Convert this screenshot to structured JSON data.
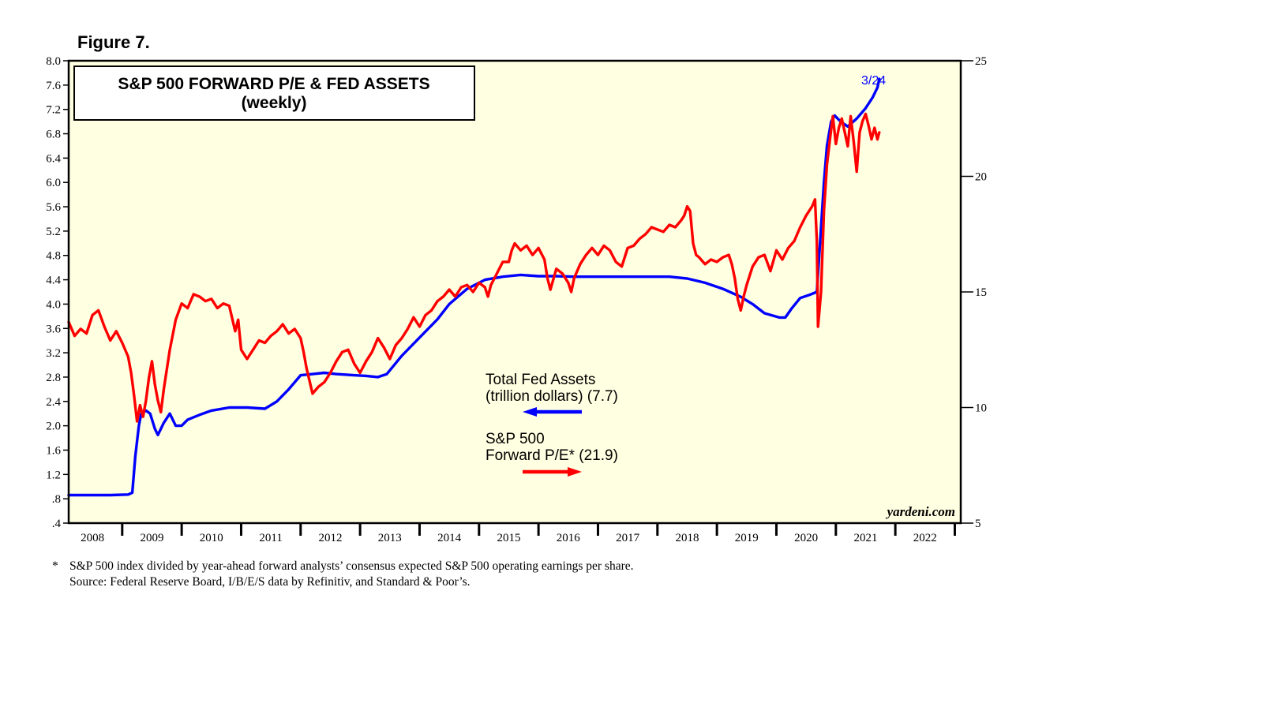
{
  "figure_label": "Figure 7.",
  "footnote_marker": "*",
  "footnote_text": "S&P 500 index divided by year-ahead forward analysts’ consensus expected S&P 500 operating earnings per share.",
  "source_text": "Source: Federal Reserve Board, I/B/E/S data by Refinitiv, and Standard & Poor’s.",
  "colors": {
    "background": "#FFFFE1",
    "fed_assets": "#0000FF",
    "pe": "#FF0000",
    "frame": "#000000"
  },
  "chart_data": {
    "type": "line",
    "title": "S&P 500 FORWARD P/E & FED ASSETS",
    "subtitle": "(weekly)",
    "watermark": "yardeni.com",
    "last_date_label": "3/24",
    "x_range": [
      2007.6,
      2022.6
    ],
    "x_ticks": [
      "2008",
      "2009",
      "2010",
      "2011",
      "2012",
      "2013",
      "2014",
      "2015",
      "2016",
      "2017",
      "2018",
      "2019",
      "2020",
      "2021",
      "2022"
    ],
    "y_left": {
      "range": [
        0.4,
        8.0
      ],
      "ticks": [
        "8.0",
        "7.6",
        "7.2",
        "6.8",
        "6.4",
        "6.0",
        "5.6",
        "5.2",
        "4.8",
        "4.4",
        "4.0",
        "3.6",
        "3.2",
        "2.8",
        "2.4",
        "2.0",
        "1.6",
        "1.2",
        ".8",
        ".4"
      ]
    },
    "y_right": {
      "range": [
        5,
        25
      ],
      "ticks": [
        "25",
        "20",
        "15",
        "10",
        "5"
      ]
    },
    "legend": {
      "fed_line1": "Total Fed Assets",
      "fed_line2": "(trillion dollars) (7.7)",
      "pe_line1": "S&P 500",
      "pe_line2": "Forward P/E* (21.9)"
    },
    "series": [
      {
        "name": "Total Fed Assets (trillion dollars)",
        "axis": "left",
        "points": [
          [
            2007.6,
            0.86
          ],
          [
            2008.0,
            0.86
          ],
          [
            2008.3,
            0.86
          ],
          [
            2008.6,
            0.87
          ],
          [
            2008.67,
            0.9
          ],
          [
            2008.72,
            1.5
          ],
          [
            2008.78,
            2.0
          ],
          [
            2008.82,
            2.2
          ],
          [
            2008.9,
            2.25
          ],
          [
            2008.97,
            2.2
          ],
          [
            2009.05,
            1.95
          ],
          [
            2009.1,
            1.85
          ],
          [
            2009.2,
            2.05
          ],
          [
            2009.3,
            2.2
          ],
          [
            2009.4,
            2.0
          ],
          [
            2009.5,
            2.0
          ],
          [
            2009.6,
            2.1
          ],
          [
            2009.8,
            2.18
          ],
          [
            2010.0,
            2.25
          ],
          [
            2010.3,
            2.3
          ],
          [
            2010.6,
            2.3
          ],
          [
            2010.9,
            2.28
          ],
          [
            2011.1,
            2.4
          ],
          [
            2011.3,
            2.6
          ],
          [
            2011.5,
            2.83
          ],
          [
            2011.7,
            2.85
          ],
          [
            2011.9,
            2.87
          ],
          [
            2012.1,
            2.85
          ],
          [
            2012.4,
            2.83
          ],
          [
            2012.6,
            2.82
          ],
          [
            2012.8,
            2.8
          ],
          [
            2012.95,
            2.85
          ],
          [
            2013.2,
            3.15
          ],
          [
            2013.5,
            3.45
          ],
          [
            2013.8,
            3.75
          ],
          [
            2014.0,
            4.0
          ],
          [
            2014.3,
            4.25
          ],
          [
            2014.6,
            4.4
          ],
          [
            2014.9,
            4.45
          ],
          [
            2015.2,
            4.48
          ],
          [
            2015.5,
            4.46
          ],
          [
            2015.8,
            4.46
          ],
          [
            2016.1,
            4.45
          ],
          [
            2016.5,
            4.45
          ],
          [
            2016.9,
            4.45
          ],
          [
            2017.3,
            4.45
          ],
          [
            2017.7,
            4.45
          ],
          [
            2018.0,
            4.42
          ],
          [
            2018.3,
            4.35
          ],
          [
            2018.6,
            4.25
          ],
          [
            2018.9,
            4.12
          ],
          [
            2019.1,
            4.0
          ],
          [
            2019.3,
            3.85
          ],
          [
            2019.55,
            3.78
          ],
          [
            2019.65,
            3.78
          ],
          [
            2019.75,
            3.92
          ],
          [
            2019.9,
            4.1
          ],
          [
            2020.05,
            4.15
          ],
          [
            2020.18,
            4.2
          ],
          [
            2020.2,
            4.5
          ],
          [
            2020.25,
            5.25
          ],
          [
            2020.3,
            6.0
          ],
          [
            2020.35,
            6.6
          ],
          [
            2020.42,
            7.0
          ],
          [
            2020.48,
            7.1
          ],
          [
            2020.58,
            7.0
          ],
          [
            2020.7,
            6.92
          ],
          [
            2020.85,
            7.05
          ],
          [
            2021.0,
            7.22
          ],
          [
            2021.12,
            7.4
          ],
          [
            2021.2,
            7.56
          ],
          [
            2021.23,
            7.7
          ]
        ]
      },
      {
        "name": "S&P 500 Forward P/E",
        "axis": "right",
        "points": [
          [
            2007.6,
            13.7
          ],
          [
            2007.7,
            13.1
          ],
          [
            2007.8,
            13.4
          ],
          [
            2007.9,
            13.2
          ],
          [
            2008.0,
            14.0
          ],
          [
            2008.1,
            14.2
          ],
          [
            2008.2,
            13.5
          ],
          [
            2008.3,
            12.9
          ],
          [
            2008.4,
            13.3
          ],
          [
            2008.5,
            12.8
          ],
          [
            2008.6,
            12.2
          ],
          [
            2008.65,
            11.5
          ],
          [
            2008.7,
            10.5
          ],
          [
            2008.75,
            9.4
          ],
          [
            2008.8,
            10.1
          ],
          [
            2008.85,
            9.6
          ],
          [
            2008.9,
            10.3
          ],
          [
            2008.95,
            11.3
          ],
          [
            2009.0,
            12.0
          ],
          [
            2009.05,
            11.0
          ],
          [
            2009.1,
            10.3
          ],
          [
            2009.15,
            9.8
          ],
          [
            2009.2,
            10.8
          ],
          [
            2009.3,
            12.5
          ],
          [
            2009.4,
            13.8
          ],
          [
            2009.5,
            14.5
          ],
          [
            2009.6,
            14.3
          ],
          [
            2009.7,
            14.9
          ],
          [
            2009.8,
            14.8
          ],
          [
            2009.9,
            14.6
          ],
          [
            2010.0,
            14.7
          ],
          [
            2010.1,
            14.3
          ],
          [
            2010.2,
            14.5
          ],
          [
            2010.3,
            14.4
          ],
          [
            2010.4,
            13.3
          ],
          [
            2010.45,
            13.8
          ],
          [
            2010.5,
            12.5
          ],
          [
            2010.6,
            12.1
          ],
          [
            2010.7,
            12.5
          ],
          [
            2010.8,
            12.9
          ],
          [
            2010.9,
            12.8
          ],
          [
            2011.0,
            13.1
          ],
          [
            2011.1,
            13.3
          ],
          [
            2011.2,
            13.6
          ],
          [
            2011.3,
            13.2
          ],
          [
            2011.4,
            13.4
          ],
          [
            2011.5,
            13.0
          ],
          [
            2011.55,
            12.4
          ],
          [
            2011.6,
            11.7
          ],
          [
            2011.7,
            10.6
          ],
          [
            2011.8,
            10.9
          ],
          [
            2011.9,
            11.1
          ],
          [
            2012.0,
            11.5
          ],
          [
            2012.1,
            12.0
          ],
          [
            2012.2,
            12.4
          ],
          [
            2012.3,
            12.5
          ],
          [
            2012.4,
            11.9
          ],
          [
            2012.5,
            11.5
          ],
          [
            2012.6,
            12.0
          ],
          [
            2012.7,
            12.4
          ],
          [
            2012.8,
            13.0
          ],
          [
            2012.9,
            12.6
          ],
          [
            2013.0,
            12.1
          ],
          [
            2013.1,
            12.7
          ],
          [
            2013.2,
            13.0
          ],
          [
            2013.3,
            13.4
          ],
          [
            2013.4,
            13.9
          ],
          [
            2013.5,
            13.5
          ],
          [
            2013.6,
            14.0
          ],
          [
            2013.7,
            14.2
          ],
          [
            2013.8,
            14.6
          ],
          [
            2013.9,
            14.8
          ],
          [
            2014.0,
            15.1
          ],
          [
            2014.1,
            14.8
          ],
          [
            2014.2,
            15.2
          ],
          [
            2014.3,
            15.3
          ],
          [
            2014.4,
            15.0
          ],
          [
            2014.5,
            15.4
          ],
          [
            2014.6,
            15.2
          ],
          [
            2014.65,
            14.8
          ],
          [
            2014.7,
            15.3
          ],
          [
            2014.8,
            15.8
          ],
          [
            2014.9,
            16.3
          ],
          [
            2015.0,
            16.3
          ],
          [
            2015.05,
            16.8
          ],
          [
            2015.1,
            17.1
          ],
          [
            2015.2,
            16.8
          ],
          [
            2015.3,
            17.0
          ],
          [
            2015.4,
            16.6
          ],
          [
            2015.5,
            16.9
          ],
          [
            2015.6,
            16.4
          ],
          [
            2015.65,
            15.6
          ],
          [
            2015.7,
            15.1
          ],
          [
            2015.8,
            16.0
          ],
          [
            2015.9,
            15.8
          ],
          [
            2016.0,
            15.4
          ],
          [
            2016.05,
            15.0
          ],
          [
            2016.1,
            15.6
          ],
          [
            2016.2,
            16.2
          ],
          [
            2016.3,
            16.6
          ],
          [
            2016.4,
            16.9
          ],
          [
            2016.5,
            16.6
          ],
          [
            2016.6,
            17.0
          ],
          [
            2016.7,
            16.8
          ],
          [
            2016.8,
            16.3
          ],
          [
            2016.9,
            16.1
          ],
          [
            2017.0,
            16.9
          ],
          [
            2017.1,
            17.0
          ],
          [
            2017.2,
            17.3
          ],
          [
            2017.3,
            17.5
          ],
          [
            2017.4,
            17.8
          ],
          [
            2017.5,
            17.7
          ],
          [
            2017.6,
            17.6
          ],
          [
            2017.7,
            17.9
          ],
          [
            2017.8,
            17.8
          ],
          [
            2017.9,
            18.1
          ],
          [
            2017.95,
            18.3
          ],
          [
            2018.0,
            18.7
          ],
          [
            2018.05,
            18.5
          ],
          [
            2018.1,
            17.1
          ],
          [
            2018.15,
            16.6
          ],
          [
            2018.2,
            16.5
          ],
          [
            2018.3,
            16.2
          ],
          [
            2018.4,
            16.4
          ],
          [
            2018.5,
            16.3
          ],
          [
            2018.6,
            16.5
          ],
          [
            2018.7,
            16.6
          ],
          [
            2018.75,
            16.2
          ],
          [
            2018.8,
            15.6
          ],
          [
            2018.85,
            14.7
          ],
          [
            2018.9,
            14.2
          ],
          [
            2018.95,
            14.8
          ],
          [
            2019.0,
            15.3
          ],
          [
            2019.1,
            16.1
          ],
          [
            2019.2,
            16.5
          ],
          [
            2019.3,
            16.6
          ],
          [
            2019.4,
            15.9
          ],
          [
            2019.5,
            16.8
          ],
          [
            2019.6,
            16.4
          ],
          [
            2019.7,
            16.9
          ],
          [
            2019.8,
            17.2
          ],
          [
            2019.9,
            17.8
          ],
          [
            2020.0,
            18.3
          ],
          [
            2020.1,
            18.7
          ],
          [
            2020.15,
            19.0
          ],
          [
            2020.18,
            17.2
          ],
          [
            2020.2,
            13.5
          ],
          [
            2020.25,
            15.0
          ],
          [
            2020.3,
            18.5
          ],
          [
            2020.35,
            20.5
          ],
          [
            2020.4,
            21.6
          ],
          [
            2020.45,
            22.6
          ],
          [
            2020.5,
            21.4
          ],
          [
            2020.55,
            22.1
          ],
          [
            2020.6,
            22.5
          ],
          [
            2020.65,
            21.9
          ],
          [
            2020.7,
            21.3
          ],
          [
            2020.75,
            22.6
          ],
          [
            2020.8,
            21.5
          ],
          [
            2020.85,
            20.2
          ],
          [
            2020.9,
            21.9
          ],
          [
            2020.95,
            22.4
          ],
          [
            2021.0,
            22.7
          ],
          [
            2021.05,
            22.2
          ],
          [
            2021.1,
            21.6
          ],
          [
            2021.15,
            22.1
          ],
          [
            2021.2,
            21.6
          ],
          [
            2021.23,
            21.9
          ]
        ]
      }
    ]
  }
}
